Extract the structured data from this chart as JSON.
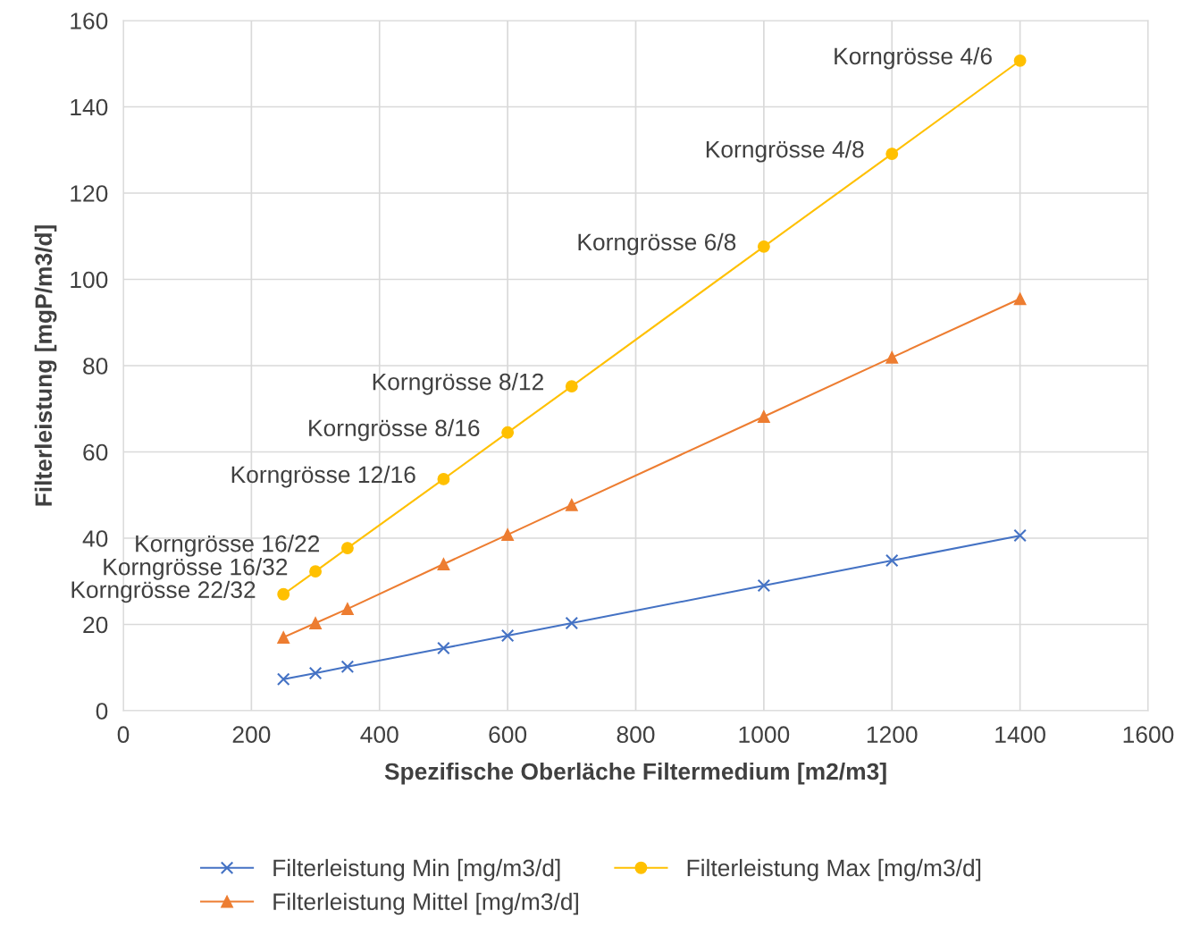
{
  "chart_data": {
    "type": "line",
    "xlabel": "Spezifische Oberläche Filtermedium [m2/m3]",
    "ylabel": "Filterleistung [mgP/m3/d]",
    "x": [
      250,
      300,
      350,
      500,
      600,
      700,
      1000,
      1200,
      1400
    ],
    "series": [
      {
        "name": "Filterleistung Min [mg/m3/d]",
        "color": "#4472c4",
        "marker": "cross",
        "values": [
          7.3,
          8.7,
          10.2,
          14.5,
          17.4,
          20.3,
          29.0,
          34.8,
          40.6
        ]
      },
      {
        "name": "Filterleistung Mittel [mg/m3/d]",
        "color": "#ed7d31",
        "marker": "triangle",
        "values": [
          17.0,
          20.3,
          23.6,
          34.0,
          40.8,
          47.7,
          68.2,
          81.9,
          95.5
        ]
      },
      {
        "name": "Filterleistung Max [mg/m3/d]",
        "color": "#ffc000",
        "marker": "circle",
        "values": [
          27.0,
          32.3,
          37.7,
          53.7,
          64.5,
          75.2,
          107.6,
          129.1,
          150.7
        ]
      }
    ],
    "annotations": [
      {
        "text": "Korngrösse 22/32",
        "x": 250,
        "y": 27.0
      },
      {
        "text": "Korngrösse 16/32",
        "x": 300,
        "y": 32.3
      },
      {
        "text": "Korngrösse 16/22",
        "x": 350,
        "y": 37.7
      },
      {
        "text": "Korngrösse 12/16",
        "x": 500,
        "y": 53.7
      },
      {
        "text": "Korngrösse 8/16",
        "x": 600,
        "y": 64.5
      },
      {
        "text": "Korngrösse 8/12",
        "x": 700,
        "y": 75.2
      },
      {
        "text": "Korngrösse 6/8",
        "x": 1000,
        "y": 107.6
      },
      {
        "text": "Korngrösse 4/8",
        "x": 1200,
        "y": 129.1
      },
      {
        "text": "Korngrösse 4/6",
        "x": 1400,
        "y": 150.7
      }
    ],
    "xlim": [
      0,
      1600
    ],
    "xticks": [
      0,
      200,
      400,
      600,
      800,
      1000,
      1200,
      1400,
      1600
    ],
    "ylim": [
      0,
      160
    ],
    "yticks": [
      0,
      20,
      40,
      60,
      80,
      100,
      120,
      140,
      160
    ],
    "grid": true,
    "legend": "bottom",
    "line_style": "solid"
  }
}
